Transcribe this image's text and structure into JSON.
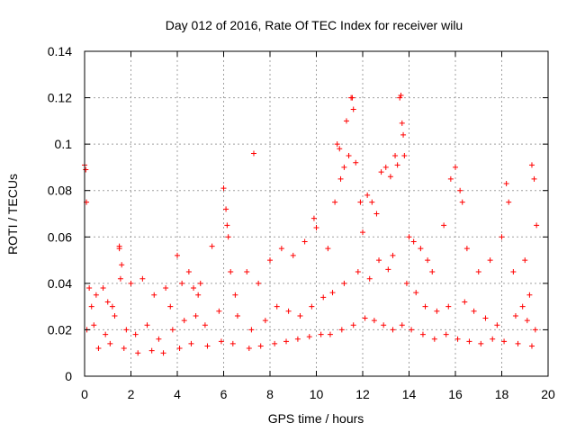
{
  "chart_data": {
    "type": "scatter",
    "title": "Day 012 of 2016, Rate Of TEC Index for receiver wilu",
    "xlabel": "GPS time / hours",
    "ylabel": "ROTI / TECUs",
    "xlim": [
      0,
      20
    ],
    "ylim": [
      0,
      0.14
    ],
    "x_ticks": [
      0,
      2,
      4,
      6,
      8,
      10,
      12,
      14,
      16,
      18,
      20
    ],
    "x_tick_labels": [
      "0",
      "2",
      "4",
      "6",
      "8",
      "10",
      "12",
      "14",
      "16",
      "18",
      "20"
    ],
    "y_ticks": [
      0,
      0.02,
      0.04,
      0.06,
      0.08,
      0.1,
      0.12,
      0.14
    ],
    "y_tick_labels": [
      "0",
      "0.02",
      "0.04",
      "0.06",
      "0.08",
      "0.1",
      "0.12",
      "0.14"
    ],
    "grid": true,
    "marker": "+",
    "color": "#ff0000",
    "series": [
      {
        "name": "ROTI",
        "x": [
          0.0,
          0.05,
          0.08,
          0.1,
          0.2,
          0.3,
          0.5,
          0.8,
          1.0,
          1.2,
          1.5,
          1.5,
          1.55,
          1.6,
          2.0,
          2.5,
          3.0,
          3.5,
          3.7,
          4.0,
          4.2,
          4.5,
          4.7,
          4.9,
          5.0,
          5.5,
          6.0,
          6.1,
          6.15,
          6.2,
          6.3,
          6.5,
          7.0,
          7.3,
          7.5,
          8.0,
          8.5,
          9.0,
          9.5,
          9.9,
          10.0,
          10.5,
          10.8,
          10.9,
          11.0,
          11.05,
          11.2,
          11.3,
          11.4,
          11.5,
          11.55,
          11.6,
          11.7,
          11.9,
          12.0,
          12.2,
          12.4,
          12.6,
          12.8,
          13.0,
          13.2,
          13.4,
          13.5,
          13.6,
          13.65,
          13.7,
          13.75,
          13.8,
          14.0,
          14.2,
          14.5,
          14.8,
          15.0,
          15.5,
          15.8,
          16.0,
          16.2,
          16.3,
          16.5,
          17.0,
          17.5,
          18.0,
          18.2,
          18.3,
          18.5,
          19.0,
          19.2,
          19.3,
          19.4,
          19.5,
          0.4,
          0.9,
          1.3,
          1.8,
          2.2,
          2.7,
          3.2,
          3.8,
          4.3,
          4.8,
          5.2,
          5.8,
          6.6,
          7.2,
          7.8,
          8.3,
          8.8,
          9.3,
          9.8,
          10.3,
          10.7,
          11.2,
          11.8,
          12.3,
          12.7,
          13.1,
          13.3,
          13.9,
          14.3,
          14.7,
          15.2,
          15.7,
          16.4,
          16.8,
          17.3,
          17.8,
          18.6,
          18.9,
          19.1,
          19.45,
          0.6,
          1.1,
          1.7,
          2.3,
          2.9,
          3.4,
          4.1,
          4.6,
          5.3,
          5.9,
          6.4,
          7.1,
          7.6,
          8.2,
          8.7,
          9.2,
          9.7,
          10.2,
          10.6,
          11.1,
          11.6,
          12.1,
          12.5,
          12.9,
          13.3,
          13.7,
          14.1,
          14.6,
          15.1,
          15.6,
          16.1,
          16.6,
          17.1,
          17.6,
          18.1,
          18.7,
          19.3
        ],
        "y": [
          0.091,
          0.089,
          0.075,
          0.02,
          0.038,
          0.03,
          0.035,
          0.038,
          0.032,
          0.03,
          0.056,
          0.055,
          0.042,
          0.048,
          0.04,
          0.042,
          0.035,
          0.038,
          0.03,
          0.052,
          0.04,
          0.045,
          0.038,
          0.035,
          0.04,
          0.056,
          0.081,
          0.072,
          0.065,
          0.06,
          0.045,
          0.035,
          0.045,
          0.096,
          0.04,
          0.05,
          0.055,
          0.052,
          0.058,
          0.068,
          0.064,
          0.055,
          0.075,
          0.1,
          0.098,
          0.085,
          0.09,
          0.11,
          0.095,
          0.12,
          0.12,
          0.115,
          0.092,
          0.075,
          0.062,
          0.078,
          0.075,
          0.07,
          0.088,
          0.09,
          0.086,
          0.095,
          0.091,
          0.12,
          0.121,
          0.109,
          0.104,
          0.095,
          0.06,
          0.058,
          0.055,
          0.05,
          0.045,
          0.065,
          0.085,
          0.09,
          0.08,
          0.075,
          0.055,
          0.045,
          0.05,
          0.06,
          0.083,
          0.075,
          0.045,
          0.05,
          0.035,
          0.091,
          0.085,
          0.065,
          0.022,
          0.018,
          0.026,
          0.02,
          0.018,
          0.022,
          0.016,
          0.02,
          0.024,
          0.026,
          0.022,
          0.028,
          0.026,
          0.02,
          0.024,
          0.03,
          0.028,
          0.026,
          0.03,
          0.034,
          0.036,
          0.04,
          0.045,
          0.042,
          0.05,
          0.046,
          0.052,
          0.04,
          0.036,
          0.03,
          0.028,
          0.03,
          0.032,
          0.028,
          0.025,
          0.022,
          0.026,
          0.03,
          0.024,
          0.02,
          0.012,
          0.014,
          0.012,
          0.01,
          0.011,
          0.01,
          0.012,
          0.014,
          0.013,
          0.015,
          0.014,
          0.012,
          0.013,
          0.014,
          0.015,
          0.016,
          0.017,
          0.018,
          0.018,
          0.02,
          0.022,
          0.025,
          0.024,
          0.022,
          0.02,
          0.022,
          0.02,
          0.018,
          0.016,
          0.018,
          0.016,
          0.015,
          0.014,
          0.016,
          0.015,
          0.014,
          0.013
        ]
      }
    ]
  }
}
